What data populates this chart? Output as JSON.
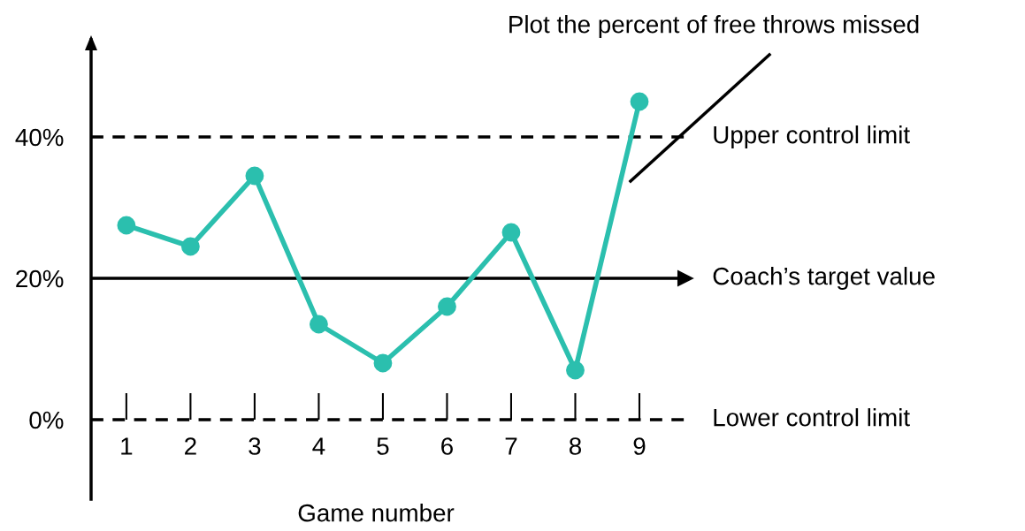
{
  "chart_data": {
    "type": "line",
    "xlabel": "Game number",
    "categories": [
      "1",
      "2",
      "3",
      "4",
      "5",
      "6",
      "7",
      "8",
      "9"
    ],
    "series": [
      {
        "color": "#2bbfae",
        "values": [
          27.5,
          24.5,
          34.5,
          13.5,
          8,
          16,
          26.5,
          7,
          45
        ]
      }
    ],
    "marker": "circle",
    "line_style": "solid",
    "ylim": [
      -11.25,
      53.75
    ],
    "yticks": [
      {
        "value": 0,
        "label": "0%"
      },
      {
        "value": 20,
        "label": "20%"
      },
      {
        "value": 40,
        "label": "40%"
      }
    ],
    "ref_lines": [
      {
        "axis": "y",
        "value": 40,
        "label": "Upper control limit",
        "color": "#000000",
        "line_style": "dashed"
      },
      {
        "axis": "y",
        "value": 20,
        "label": "Coach’s target value",
        "color": "#000000",
        "line_style": "solid"
      },
      {
        "axis": "y",
        "value": 0,
        "label": "Lower control limit",
        "color": "#000000",
        "line_style": "dashed"
      }
    ],
    "annotations": [
      "Plot the percent of free throws missed"
    ],
    "grid": false,
    "legend": false
  }
}
